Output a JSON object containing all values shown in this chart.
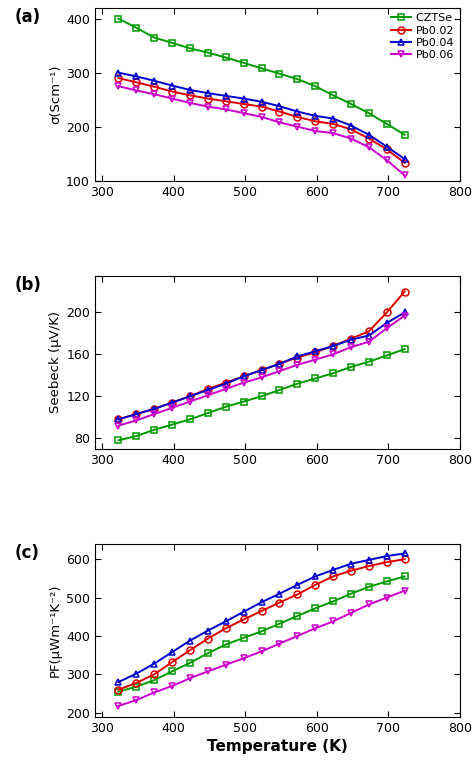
{
  "temperature": [
    323,
    348,
    373,
    398,
    423,
    448,
    473,
    498,
    523,
    548,
    573,
    598,
    623,
    648,
    673,
    698,
    723
  ],
  "sigma_CZTSe": [
    400,
    383,
    365,
    355,
    345,
    337,
    328,
    318,
    308,
    298,
    288,
    275,
    258,
    242,
    225,
    205,
    185
  ],
  "sigma_Pb002": [
    290,
    282,
    274,
    265,
    258,
    252,
    247,
    242,
    237,
    228,
    218,
    210,
    205,
    195,
    178,
    158,
    133
  ],
  "sigma_Pb004": [
    300,
    293,
    285,
    276,
    268,
    262,
    257,
    252,
    246,
    238,
    228,
    220,
    215,
    202,
    185,
    163,
    140
  ],
  "sigma_Pb006": [
    275,
    267,
    260,
    252,
    244,
    237,
    232,
    225,
    218,
    208,
    200,
    192,
    188,
    178,
    162,
    138,
    110
  ],
  "seebeck_CZTSe": [
    78,
    82,
    88,
    93,
    98,
    104,
    110,
    115,
    120,
    126,
    132,
    137,
    142,
    148,
    153,
    159,
    165
  ],
  "seebeck_Pb002": [
    98,
    103,
    108,
    114,
    120,
    127,
    133,
    139,
    145,
    151,
    157,
    162,
    168,
    175,
    182,
    200,
    220
  ],
  "seebeck_Pb004": [
    98,
    103,
    108,
    114,
    120,
    126,
    132,
    139,
    145,
    151,
    158,
    163,
    168,
    174,
    178,
    190,
    200
  ],
  "seebeck_Pb006": [
    92,
    97,
    103,
    109,
    115,
    121,
    127,
    133,
    138,
    144,
    150,
    155,
    160,
    167,
    172,
    185,
    197
  ],
  "pf_CZTSe": [
    255,
    268,
    285,
    308,
    330,
    355,
    378,
    395,
    412,
    432,
    452,
    472,
    490,
    510,
    528,
    542,
    555
  ],
  "pf_Pb002": [
    260,
    278,
    300,
    332,
    363,
    393,
    420,
    443,
    465,
    487,
    508,
    533,
    555,
    570,
    582,
    592,
    600
  ],
  "pf_Pb004": [
    280,
    302,
    328,
    358,
    388,
    414,
    438,
    463,
    488,
    510,
    533,
    555,
    572,
    588,
    598,
    608,
    615
  ],
  "pf_Pb006": [
    218,
    233,
    253,
    270,
    290,
    308,
    325,
    342,
    360,
    380,
    400,
    420,
    438,
    460,
    482,
    500,
    518
  ],
  "color_CZTSe": "#009900",
  "color_Pb002": "#dd0000",
  "color_Pb004": "#0000cc",
  "color_Pb006": "#cc00cc",
  "label_CZTSe": "CZTSe ",
  "label_Pb002": "Pb0.02",
  "label_Pb004": "Pb0.04",
  "label_Pb006": "Pb0.06",
  "ylabel_a": "σ(Scm⁻¹)",
  "ylabel_b": "Seebeck (μV/K)",
  "ylabel_c": "PF(μWm⁻¹K⁻²)",
  "xlabel": "Temperature (K)",
  "ylim_a": [
    100,
    420
  ],
  "ylim_b": [
    70,
    235
  ],
  "ylim_c": [
    190,
    640
  ],
  "yticks_a": [
    100,
    200,
    300,
    400
  ],
  "yticks_b": [
    80,
    120,
    160,
    200
  ],
  "yticks_c": [
    200,
    300,
    400,
    500,
    600
  ],
  "xlim": [
    290,
    780
  ],
  "xticks": [
    300,
    400,
    500,
    600,
    700,
    800
  ],
  "xticklabels": [
    "300",
    "400",
    "500",
    "600",
    "700",
    "800"
  ],
  "marker_size": 5,
  "line_width": 1.4
}
